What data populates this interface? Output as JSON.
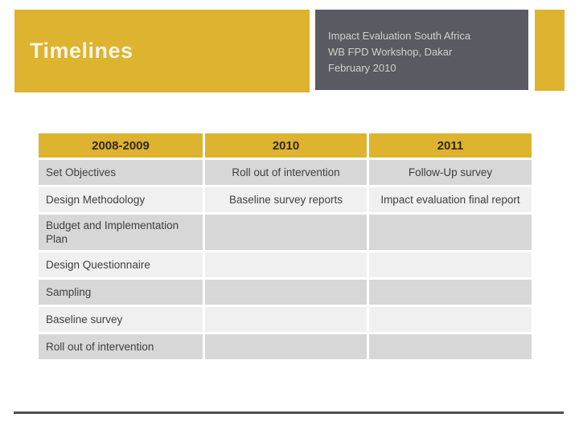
{
  "header": {
    "title": "Timelines",
    "subtitle_lines": [
      "Impact Evaluation South Africa",
      "WB FPD Workshop, Dakar",
      "February 2010"
    ]
  },
  "table": {
    "headers": [
      "2008-2009",
      "2010",
      "2011"
    ],
    "rows": [
      [
        "Set Objectives",
        "Roll out of intervention",
        "Follow-Up survey"
      ],
      [
        "Design Methodology",
        "Baseline survey reports",
        "Impact evaluation final report"
      ],
      [
        "Budget and Implementation Plan",
        "",
        ""
      ],
      [
        "Design Questionnaire",
        "",
        ""
      ],
      [
        "Sampling",
        "",
        ""
      ],
      [
        "Baseline survey",
        "",
        ""
      ],
      [
        "Roll out of intervention",
        "",
        ""
      ]
    ]
  },
  "colors": {
    "accent_yellow": "#ddb32f",
    "header_gray": "#5a5a62",
    "row_dark": "#d7d7d7",
    "row_light": "#f0f0f0",
    "title_text": "#f9f5e6",
    "subtitle_text": "#d3d0c8",
    "table_header_text": "#332a10",
    "cell_text": "#3f3f3f",
    "bottom_line": "#4f4f4f"
  }
}
